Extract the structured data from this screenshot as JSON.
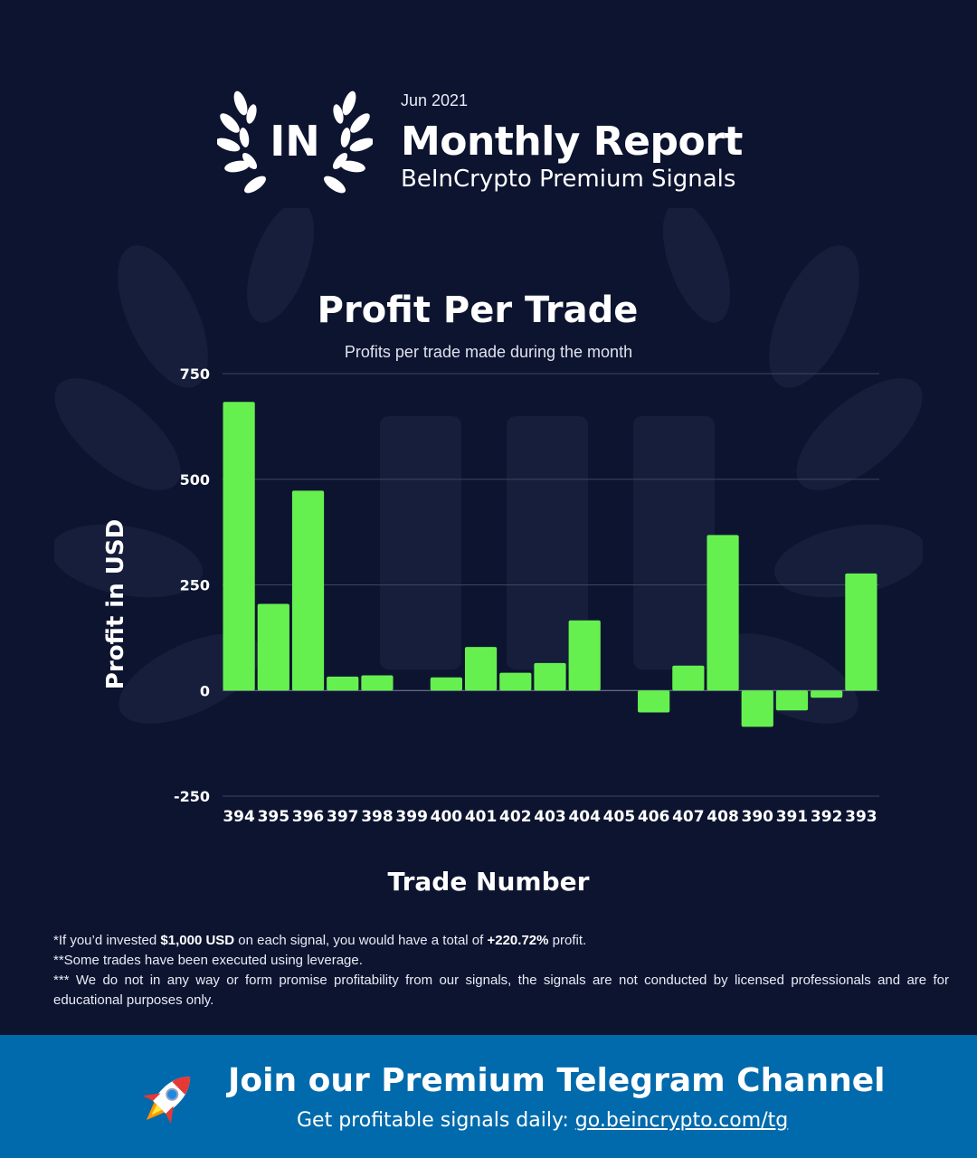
{
  "header": {
    "date": "Jun 2021",
    "title": "Monthly Report",
    "subtitle": "BeInCrypto Premium Signals",
    "logo_text": "IN"
  },
  "chart_data": {
    "type": "bar",
    "title": "Profit Per Trade",
    "subtitle": "Profits per trade made during the month",
    "xlabel": "Trade Number",
    "ylabel": "Profit in USD",
    "ylim": [
      -250,
      750
    ],
    "yticks": [
      750,
      500,
      250,
      0,
      -250
    ],
    "grid": true,
    "categories": [
      "394",
      "395",
      "396",
      "397",
      "398",
      "399",
      "400",
      "401",
      "402",
      "403",
      "404",
      "405",
      "406",
      "407",
      "408",
      "390",
      "391",
      "392",
      "393"
    ],
    "values": [
      683,
      205,
      473,
      33,
      36,
      0,
      31,
      103,
      42,
      65,
      166,
      0,
      -52,
      59,
      368,
      -86,
      -47,
      -17,
      277
    ],
    "bar_color": "#66f050"
  },
  "notes": {
    "line1_pre": "*If you’d invested ",
    "line1_amount": "$1,000 USD",
    "line1_mid": " on each signal, you would have a total of ",
    "line1_profit": "+220.72%",
    "line1_post": " profit.",
    "line2": "**Some trades have been executed using leverage.",
    "line3": "*** We do not in any way or form promise profitability from our signals, the signals are not conducted by licensed professionals and are for educational purposes only."
  },
  "footer": {
    "title": "Join our Premium Telegram Channel",
    "sub_text": "Get profitable signals daily: ",
    "link": "go.beincrypto.com/tg",
    "icon": "rocket-icon"
  },
  "colors": {
    "background": "#0d1430",
    "footer": "#006aac",
    "bar": "#66f050"
  }
}
